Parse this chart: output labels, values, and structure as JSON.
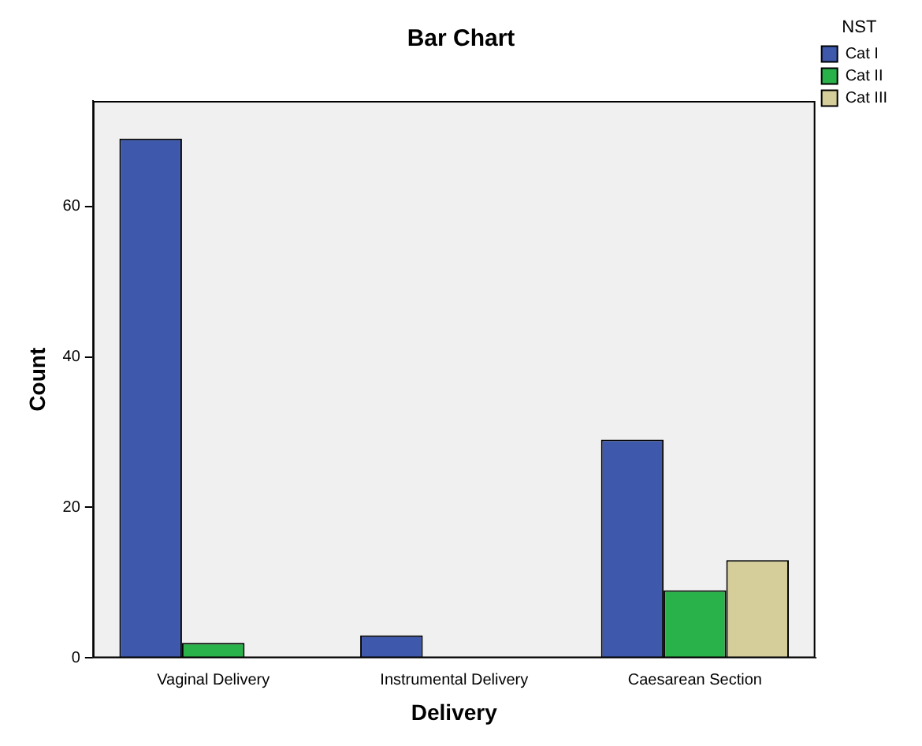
{
  "chart_data": {
    "type": "bar",
    "title": "Bar Chart",
    "xlabel": "Delivery",
    "ylabel": "Count",
    "legend_title": "NST",
    "legend": "top right",
    "grid": false,
    "categories": [
      "Vaginal Delivery",
      "Instrumental Delivery",
      "Caesarean Section"
    ],
    "series": [
      {
        "name": "Cat I",
        "color": "#3e58ac",
        "values": [
          69,
          3,
          29
        ]
      },
      {
        "name": "Cat II",
        "color": "#2ab24a",
        "values": [
          2,
          null,
          9
        ]
      },
      {
        "name": "Cat III",
        "color": "#d5ce9a",
        "values": [
          null,
          null,
          13
        ]
      }
    ],
    "ylim": [
      0,
      74
    ],
    "yticks": [
      0,
      20,
      40,
      60
    ]
  }
}
